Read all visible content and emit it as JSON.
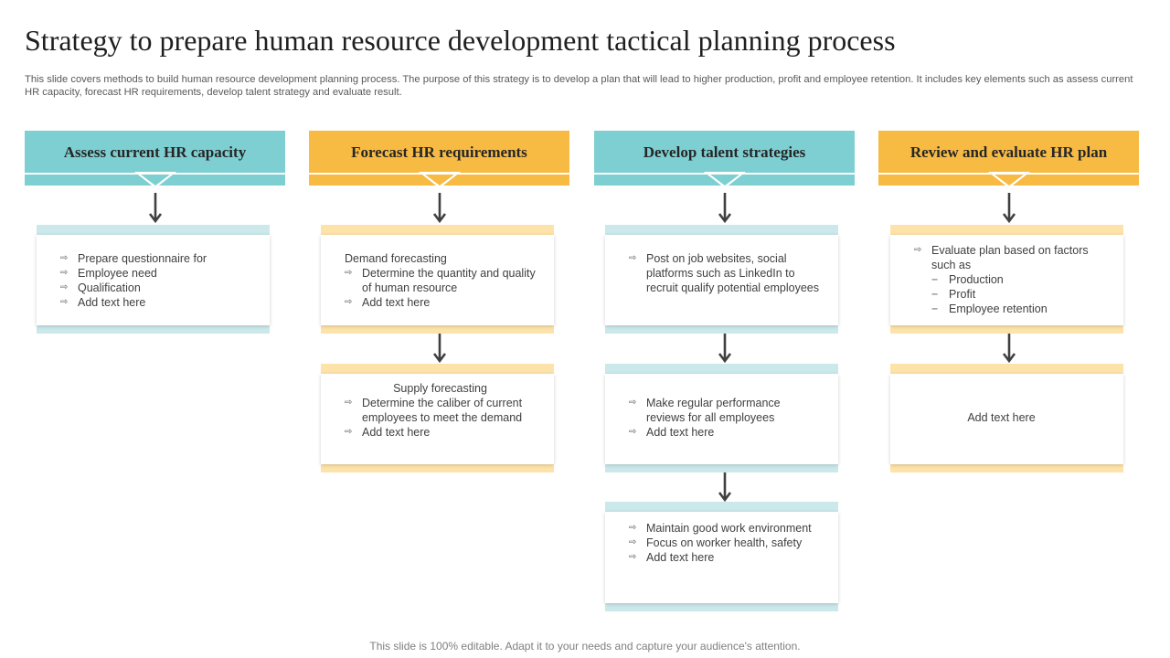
{
  "title": "Strategy to prepare human resource development tactical planning process",
  "subtitle": "This slide covers methods to build human resource development planning process. The purpose of this strategy is to  develop a plan  that will lead to higher production, profit and employee retention. It includes key elements such as assess current HR capacity, forecast HR requirements, develop talent strategy and evaluate result.",
  "colors": {
    "teal": "#7ecfd2",
    "amber": "#f7bb44",
    "light_teal": "#cbe8eb",
    "light_amber": "#fde3a9"
  },
  "icons": {
    "bullet": "⇨",
    "dash": "−"
  },
  "columns": [
    {
      "heading": "Assess current HR capacity",
      "box1": {
        "items": [
          "Prepare questionnaire for",
          "Employee need",
          "Qualification",
          "Add text here"
        ]
      }
    },
    {
      "heading": "Forecast HR requirements",
      "box1": {
        "lead": "Demand forecasting",
        "items": [
          "Determine the quantity and quality of human resource",
          "Add text here"
        ]
      },
      "box2": {
        "lead": "Supply forecasting",
        "items": [
          "Determine the caliber of current employees to meet the demand",
          "Add text here"
        ]
      }
    },
    {
      "heading": "Develop talent strategies",
      "box1": {
        "items": [
          "Post on job websites, social platforms such as LinkedIn to recruit qualify potential employees"
        ]
      },
      "box2": {
        "items": [
          "Make regular performance reviews  for all employees",
          "Add text here"
        ]
      },
      "box3": {
        "items": [
          "Maintain good work environment",
          "Focus on worker health, safety",
          "Add text here"
        ]
      }
    },
    {
      "heading": "Review and evaluate HR plan",
      "box1": {
        "items": [
          "Evaluate plan based on factors such as"
        ],
        "subitems": [
          "Production",
          "Profit",
          "Employee retention"
        ]
      },
      "box2": {
        "text": "Add text here"
      }
    }
  ],
  "footer": "This slide is 100% editable. Adapt it to your needs and capture your audience's attention."
}
